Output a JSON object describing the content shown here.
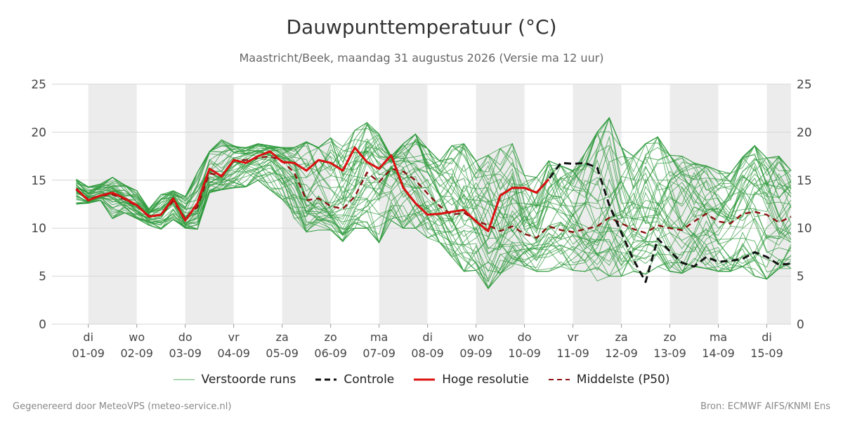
{
  "header": {
    "title": "Dauwpunttemperatuur (°C)",
    "subtitle": "Maastricht/Beek, maandag 31 augustus 2026 (Versie ma 12 uur)"
  },
  "footer": {
    "left": "Gegenereerd door MeteoVPS (meteo-service.nl)",
    "right": "Bron: ECMWF AIFS/KNMI Ens"
  },
  "legend": [
    {
      "label": "Verstoorde runs",
      "color": "#2e9a3c",
      "style": "thin"
    },
    {
      "label": "Controle",
      "color": "#111111",
      "style": "dashed"
    },
    {
      "label": "Hoge resolutie",
      "color": "#dd1111",
      "style": "solid"
    },
    {
      "label": "Middelste (P50)",
      "color": "#8b1010",
      "style": "dashed"
    }
  ],
  "chart_data": {
    "type": "line",
    "x_unit": "day index (0 = 01-09 00h), 6-hourly steps",
    "ylim": [
      0,
      25
    ],
    "y_ticks": [
      0,
      5,
      10,
      15,
      20,
      25
    ],
    "grid": true,
    "x_range": [
      -0.75,
      14.5
    ],
    "x_ticks": [
      {
        "day": "di",
        "date": "01-09"
      },
      {
        "day": "wo",
        "date": "02-09"
      },
      {
        "day": "do",
        "date": "03-09"
      },
      {
        "day": "vr",
        "date": "04-09"
      },
      {
        "day": "za",
        "date": "05-09"
      },
      {
        "day": "zo",
        "date": "06-09"
      },
      {
        "day": "ma",
        "date": "07-09"
      },
      {
        "day": "di",
        "date": "08-09"
      },
      {
        "day": "wo",
        "date": "09-09"
      },
      {
        "day": "do",
        "date": "10-09"
      },
      {
        "day": "vr",
        "date": "11-09"
      },
      {
        "day": "za",
        "date": "12-09"
      },
      {
        "day": "zo",
        "date": "13-09"
      },
      {
        "day": "ma",
        "date": "14-09"
      },
      {
        "day": "di",
        "date": "15-09"
      }
    ],
    "shaded_days": [
      0,
      2,
      4,
      6,
      8,
      10,
      12,
      14
    ],
    "series": [
      {
        "name": "Hoge resolutie",
        "color": "#dd1111",
        "x": [
          -0.25,
          0,
          0.25,
          0.5,
          0.75,
          1,
          1.25,
          1.5,
          1.75,
          2,
          2.25,
          2.5,
          2.75,
          3,
          3.25,
          3.5,
          3.75,
          4,
          4.25,
          4.5,
          4.75,
          5,
          5.25,
          5.5,
          5.75,
          6,
          6.25,
          6.5,
          6.75,
          7,
          7.25,
          7.5,
          7.75,
          8,
          8.25,
          8.5,
          8.75,
          9,
          9.25,
          9.5
        ],
        "values": [
          14.1,
          12.9,
          13.4,
          13.7,
          13.1,
          12.4,
          11.2,
          11.4,
          13.1,
          10.8,
          12.6,
          16.2,
          15.4,
          17.1,
          16.8,
          17.5,
          18.0,
          16.9,
          16.8,
          16.0,
          17.1,
          16.8,
          16.0,
          18.4,
          16.9,
          16.2,
          17.6,
          14.2,
          12.6,
          11.4,
          11.5,
          11.7,
          11.9,
          10.7,
          9.7,
          13.4,
          14.2,
          14.2,
          13.7,
          15.1
        ]
      },
      {
        "name": "Controle",
        "color": "#111111",
        "x": [
          -0.25,
          0,
          0.25,
          0.5,
          0.75,
          1,
          1.25,
          1.5,
          1.75,
          2,
          2.25,
          2.5,
          2.75,
          3,
          3.25,
          3.5,
          3.75,
          4,
          4.25,
          4.5,
          4.75,
          5,
          5.25,
          5.5,
          5.75,
          6,
          6.25,
          6.5,
          6.75,
          7,
          7.25,
          7.5,
          7.75,
          8,
          8.25,
          8.5,
          8.75,
          9,
          9.25,
          9.5,
          9.75,
          10,
          10.25,
          10.5,
          10.75,
          11,
          11.25,
          11.5,
          11.75,
          12,
          12.25,
          12.5,
          12.75,
          13,
          13.25,
          13.5,
          13.75,
          14,
          14.25,
          14.5
        ],
        "values": [
          14.1,
          12.9,
          13.4,
          13.7,
          13.1,
          12.4,
          11.2,
          11.4,
          13.1,
          10.8,
          12.6,
          16.2,
          15.4,
          17.1,
          16.8,
          17.5,
          18.0,
          16.9,
          16.8,
          16.0,
          17.1,
          16.8,
          16.0,
          18.4,
          16.9,
          16.2,
          17.6,
          14.2,
          12.6,
          11.4,
          11.5,
          11.7,
          11.9,
          10.7,
          9.7,
          13.4,
          14.2,
          14.2,
          13.7,
          15.1,
          16.8,
          16.7,
          16.8,
          16.3,
          12.4,
          9.5,
          6.7,
          4.4,
          8.9,
          7.6,
          6.4,
          6.0,
          7.0,
          6.5,
          6.6,
          6.8,
          7.5,
          7.0,
          6.2,
          6.3
        ]
      },
      {
        "name": "Middelste (P50)",
        "color": "#8b1010",
        "x": [
          -0.25,
          0,
          0.25,
          0.5,
          0.75,
          1,
          1.25,
          1.5,
          1.75,
          2,
          2.25,
          2.5,
          2.75,
          3,
          3.25,
          3.5,
          3.75,
          4,
          4.25,
          4.5,
          4.75,
          5,
          5.25,
          5.5,
          5.75,
          6,
          6.25,
          6.5,
          6.75,
          7,
          7.25,
          7.5,
          7.75,
          8,
          8.25,
          8.5,
          8.75,
          9,
          9.25,
          9.5,
          9.75,
          10,
          10.25,
          10.5,
          10.75,
          11,
          11.25,
          11.5,
          11.75,
          12,
          12.25,
          12.5,
          12.75,
          13,
          13.25,
          13.5,
          13.75,
          14,
          14.25,
          14.5
        ],
        "values": [
          14.0,
          13.0,
          13.4,
          13.5,
          13.0,
          12.3,
          11.3,
          11.4,
          12.8,
          11.0,
          12.2,
          15.7,
          15.5,
          17.0,
          17.1,
          17.3,
          17.5,
          17.0,
          15.8,
          12.9,
          13.1,
          12.3,
          12.0,
          13.3,
          15.8,
          14.8,
          16.2,
          15.9,
          15.0,
          13.6,
          12.3,
          11.4,
          11.6,
          10.8,
          10.3,
          9.7,
          10.2,
          9.4,
          9.0,
          10.2,
          9.8,
          9.6,
          9.9,
          10.2,
          11.1,
          10.5,
          9.9,
          9.5,
          10.3,
          10.0,
          9.8,
          10.7,
          11.5,
          10.7,
          10.5,
          11.5,
          11.7,
          11.4,
          10.6,
          11.2
        ]
      }
    ],
    "ensemble": {
      "name": "Verstoorde runs",
      "color": "#2e9a3c",
      "members": 50,
      "x_step_days": 0.25,
      "x_start": -0.25,
      "envelope_min": [
        12.5,
        12.6,
        12.9,
        11.0,
        11.6,
        11.0,
        10.3,
        9.9,
        10.9,
        10.0,
        9.9,
        13.7,
        14.0,
        14.2,
        14.3,
        15.0,
        14.0,
        13.0,
        11.0,
        9.6,
        9.8,
        9.8,
        8.6,
        10.0,
        10.0,
        8.5,
        10.8,
        10.0,
        10.0,
        9.0,
        8.5,
        7.0,
        5.5,
        5.6,
        3.7,
        5.2,
        6.0,
        6.0,
        5.5,
        5.5,
        6.0,
        5.6,
        5.5,
        4.5,
        5.0,
        5.0,
        5.5,
        5.2,
        6.0,
        5.5,
        5.3,
        6.0,
        5.8,
        5.5,
        5.5,
        6.0,
        5.0,
        4.7,
        5.8,
        5.8
      ],
      "envelope_max": [
        15.1,
        14.3,
        14.6,
        15.3,
        14.5,
        13.9,
        12.0,
        13.5,
        13.9,
        13.3,
        15.8,
        18.0,
        19.2,
        18.6,
        18.4,
        18.8,
        18.6,
        18.4,
        18.4,
        19.0,
        18.4,
        19.4,
        18.5,
        20.2,
        21.0,
        19.8,
        17.5,
        18.8,
        19.8,
        18.3,
        17.0,
        18.6,
        18.8,
        17.0,
        17.6,
        18.3,
        18.8,
        15.5,
        15.3,
        17.0,
        16.5,
        16.0,
        17.8,
        20.0,
        21.5,
        18.4,
        17.5,
        18.8,
        19.5,
        17.6,
        17.5,
        16.8,
        16.5,
        16.0,
        15.7,
        17.4,
        18.6,
        17.3,
        17.5,
        16.0
      ]
    }
  }
}
